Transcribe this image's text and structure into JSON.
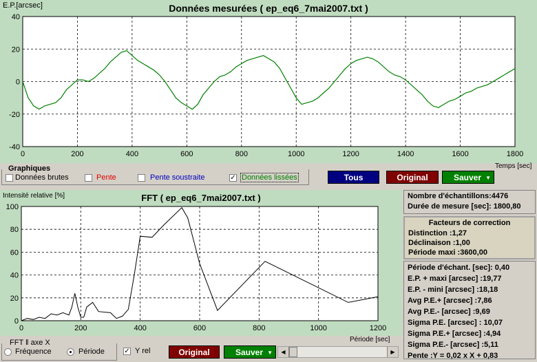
{
  "top_chart": {
    "title": "Données mesurées ( ep_eq6_7mai2007.txt )",
    "ylabel": "E.P.[arcsec]",
    "xlabel": "Temps [sec]",
    "x_ticks": [
      "0",
      "200",
      "400",
      "600",
      "800",
      "1000",
      "1200",
      "1400",
      "1600",
      "1800"
    ],
    "y_ticks": [
      "40",
      "20",
      "0",
      "-20",
      "-40"
    ],
    "series_color": "#008000"
  },
  "graph_options": {
    "group_label": "Graphiques",
    "raw_label": "Données brutes",
    "raw_checked": false,
    "slope_label": "Pente",
    "slope_checked": false,
    "slope_sub_label": "Pente soustraite",
    "slope_sub_checked": false,
    "smooth_label": "Données lissées",
    "smooth_checked": true,
    "tous_button": "Tous",
    "original_button": "Original",
    "save_button": "Sauver"
  },
  "fft_chart": {
    "title": "FFT ( ep_eq6_7mai2007.txt )",
    "ylabel": "Intensité relative [%]",
    "xlabel": "Période [sec]",
    "x_ticks": [
      "0",
      "200",
      "400",
      "600",
      "800",
      "1000",
      "1200"
    ],
    "y_ticks": [
      "100",
      "80",
      "60",
      "40",
      "20",
      "0"
    ]
  },
  "fft_controls": {
    "axis_group_label": "FFT ‖ axe X",
    "freq_label": "Fréquence",
    "freq_selected": false,
    "period_label": "Période",
    "period_selected": true,
    "yrel_label": "Y rel",
    "yrel_checked": true,
    "original_button": "Original",
    "save_button": "Sauver"
  },
  "stats": {
    "samples": "Nombre d'échantillons:4476",
    "duration": "Durée de mesure [sec]: 1800,80"
  },
  "correction": {
    "title": "Facteurs de correction",
    "distinction": "Distinction :1,27",
    "declination": "Déclinaison :1,00",
    "max_period": "Période maxi :3600,00"
  },
  "results": {
    "sample_period": "Période d'échant. [sec]: 0,40",
    "ep_max": "E.P. + maxi [arcsec] :19,77",
    "ep_min": "E.P. - mini [arcsec] :18,18",
    "avg_pos": "Avg P.E.+ [arcsec] :7,86",
    "avg_neg": "Avg P.E.- [arcsec] :9,69",
    "sigma": "Sigma P.E. [arcsec] : 10,07",
    "sigma_pos": "Sigma P.E.+ [arcsec] :4,94",
    "sigma_neg": "Sigma P.E.- [arcsec] :5,11",
    "slope": "Pente :Y = 0,02 x X + 0,83"
  },
  "colors": {
    "btn_blue": "#000080",
    "btn_red": "#800000",
    "btn_green": "#008000",
    "panel_green": "#c0dcc0"
  },
  "chart_data": [
    {
      "type": "line",
      "title": "Données mesurées ( ep_eq6_7mai2007.txt )",
      "xlabel": "Temps [sec]",
      "ylabel": "E.P.[arcsec]",
      "xlim": [
        0,
        1800
      ],
      "ylim": [
        -40,
        40
      ],
      "grid": true,
      "series": [
        {
          "x": [
            0,
            20,
            40,
            60,
            80,
            100,
            120,
            140,
            160,
            180,
            200,
            220,
            240,
            260,
            280,
            300,
            320,
            340,
            360,
            380,
            400,
            420,
            440,
            460,
            480,
            500,
            520,
            540,
            560,
            580,
            600,
            620,
            640,
            660,
            680,
            700,
            720,
            740,
            760,
            780,
            800,
            820,
            840,
            860,
            880,
            900,
            920,
            940,
            960,
            980,
            1000,
            1020,
            1040,
            1060,
            1080,
            1100,
            1120,
            1140,
            1160,
            1180,
            1200,
            1220,
            1240,
            1260,
            1280,
            1300,
            1320,
            1340,
            1360,
            1380,
            1400,
            1420,
            1440,
            1460,
            1480,
            1500,
            1520,
            1540,
            1560,
            1580,
            1600,
            1620,
            1640,
            1660,
            1680,
            1700,
            1720,
            1740,
            1760,
            1780,
            1800
          ],
          "values": [
            0,
            -10,
            -15,
            -17,
            -15,
            -14,
            -13,
            -10,
            -5,
            -2,
            1,
            1,
            0,
            2,
            5,
            8,
            12,
            15,
            18,
            19,
            16,
            13,
            11,
            9,
            7,
            4,
            0,
            -5,
            -10,
            -13,
            -15,
            -17,
            -14,
            -8,
            -4,
            0,
            3,
            4,
            6,
            9,
            11,
            13,
            14,
            15,
            16,
            14,
            12,
            8,
            2,
            -4,
            -10,
            -14,
            -13,
            -12,
            -10,
            -7,
            -4,
            0,
            4,
            8,
            11,
            13,
            14,
            15,
            14,
            12,
            9,
            6,
            4,
            3,
            1,
            -2,
            -5,
            -8,
            -12,
            -15,
            -16,
            -14,
            -12,
            -11,
            -9,
            -7,
            -6,
            -4,
            -3,
            -2,
            0,
            2,
            4,
            6,
            8
          ]
        }
      ]
    },
    {
      "type": "line",
      "title": "FFT ( ep_eq6_7mai2007.txt )",
      "xlabel": "Période [sec]",
      "ylabel": "Intensité relative [%]",
      "xlim": [
        0,
        1200
      ],
      "ylim": [
        0,
        100
      ],
      "grid": true,
      "series": [
        {
          "x": [
            0,
            20,
            40,
            60,
            80,
            100,
            120,
            140,
            160,
            170,
            180,
            190,
            200,
            210,
            220,
            240,
            260,
            300,
            320,
            340,
            360,
            380,
            400,
            440,
            480,
            540,
            560,
            600,
            660,
            820,
            1100,
            1200
          ],
          "values": [
            0,
            2,
            1,
            3,
            2,
            6,
            5,
            7,
            5,
            12,
            24,
            12,
            3,
            3,
            12,
            16,
            8,
            7,
            2,
            4,
            10,
            40,
            74,
            73,
            84,
            99,
            90,
            50,
            9,
            52,
            16,
            21
          ]
        }
      ]
    }
  ]
}
